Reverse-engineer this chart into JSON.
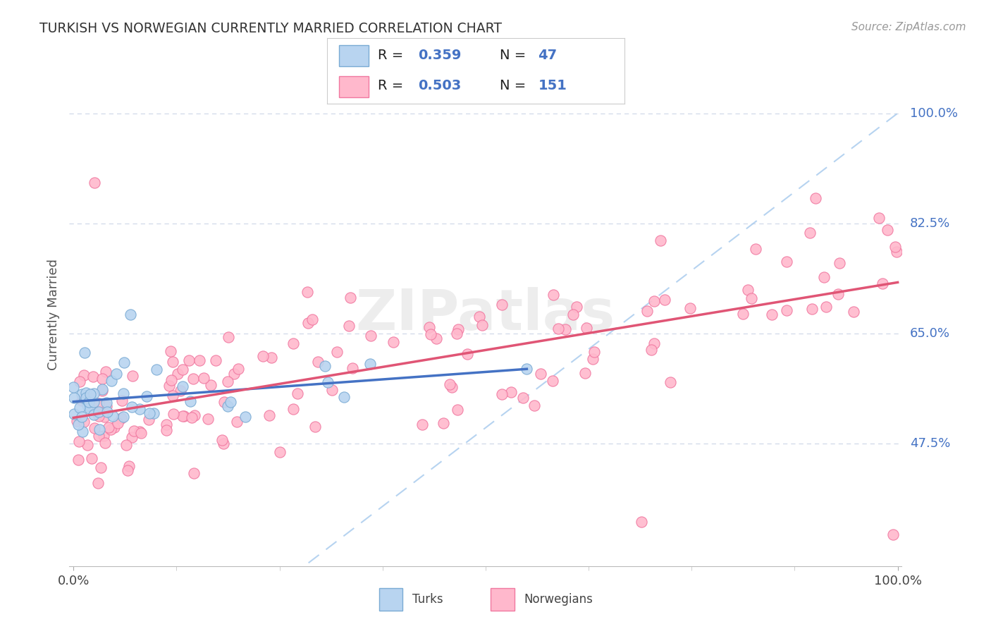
{
  "title": "TURKISH VS NORWEGIAN CURRENTLY MARRIED CORRELATION CHART",
  "source": "Source: ZipAtlas.com",
  "ylabel": "Currently Married",
  "ytick_labels": [
    "47.5%",
    "65.0%",
    "82.5%",
    "100.0%"
  ],
  "ytick_values": [
    0.475,
    0.65,
    0.825,
    1.0
  ],
  "blue_fill": "#b8d4f0",
  "blue_edge": "#7aabd4",
  "pink_fill": "#ffb8cc",
  "pink_edge": "#f078a0",
  "trend_blue": "#4472c4",
  "trend_pink": "#e05575",
  "text_blue": "#4472c4",
  "diag_color": "#aaccee",
  "grid_color": "#d0d8e8",
  "background": "#ffffff"
}
